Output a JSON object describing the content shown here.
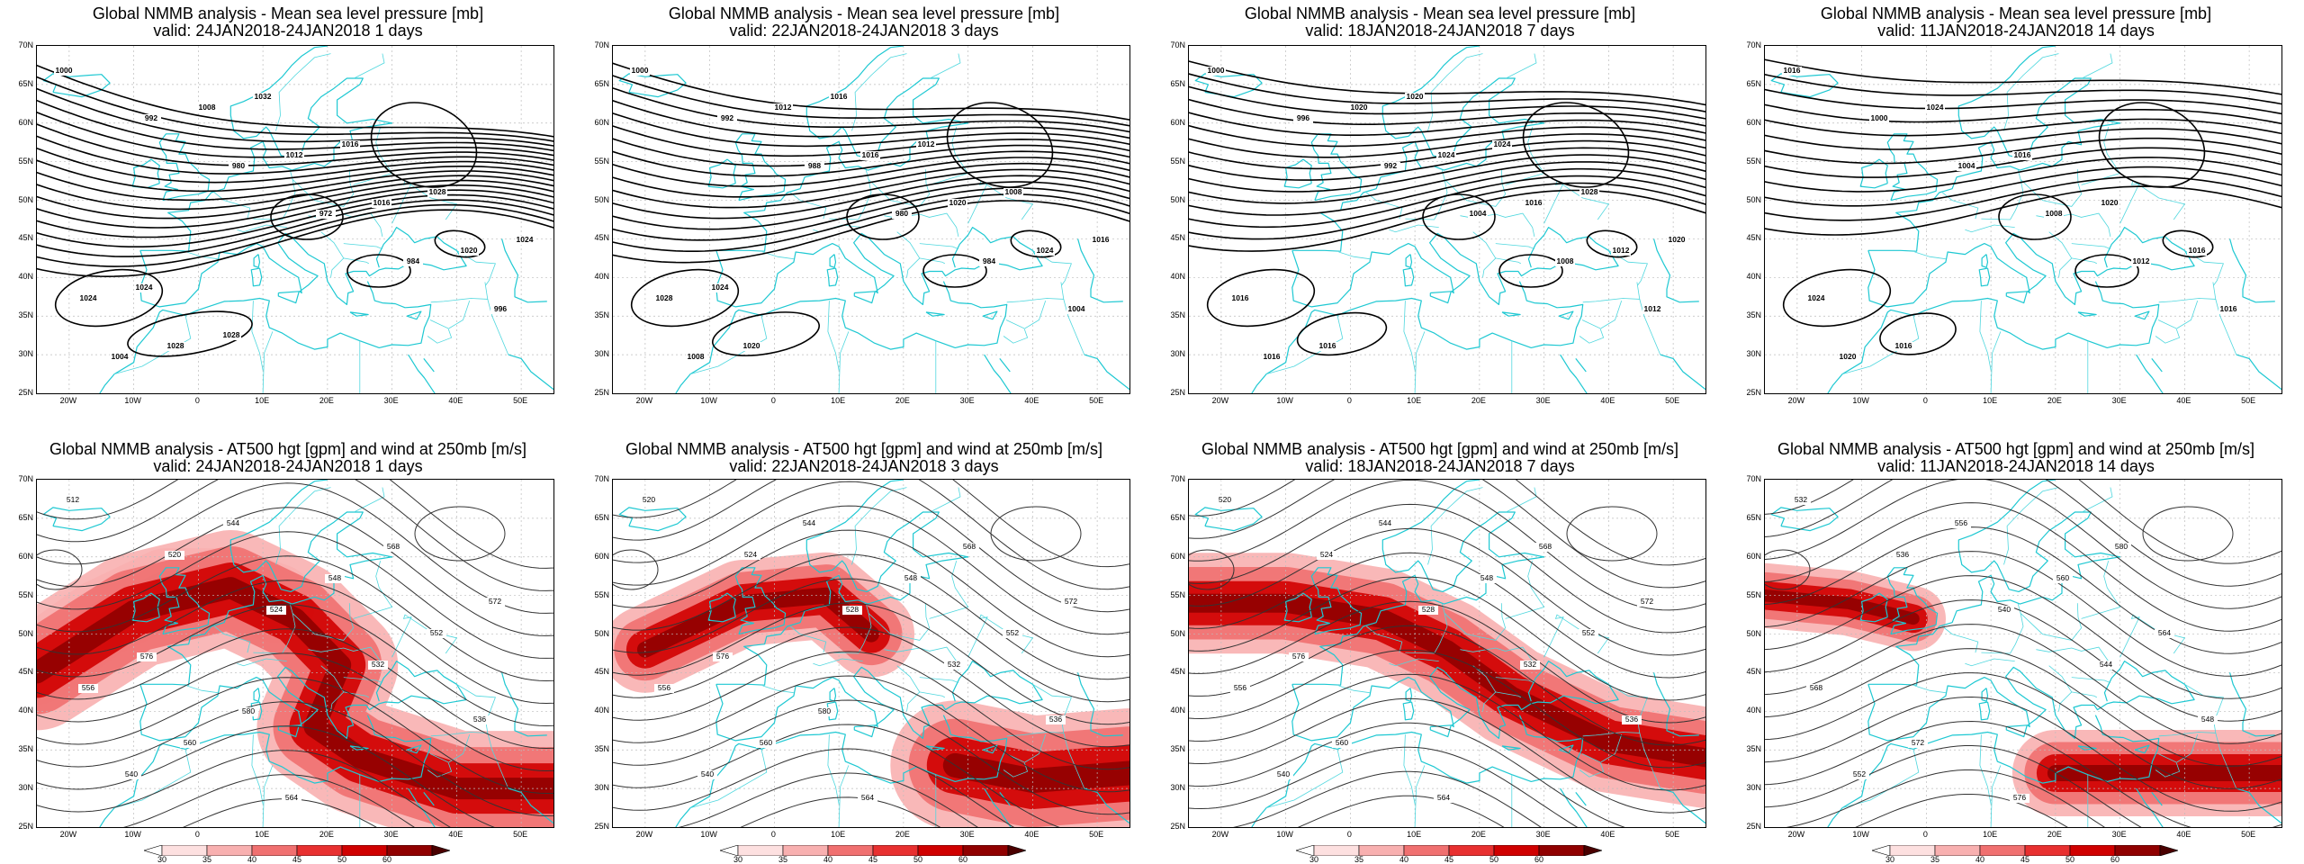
{
  "top_title_prefix": "Global NMMB analysis - Mean sea level pressure [mb]",
  "bottom_title_prefix": "Global NMMB analysis - AT500 hgt [gpm] and wind at 250mb [m/s]",
  "panels": [
    {
      "valid": "valid: 24JAN2018-24JAN2018   1 days"
    },
    {
      "valid": "valid: 22JAN2018-24JAN2018   3 days"
    },
    {
      "valid": "valid: 18JAN2018-24JAN2018   7 days"
    },
    {
      "valid": "valid: 11JAN2018-24JAN2018   14 days"
    }
  ],
  "lat_labels": [
    "70N",
    "65N",
    "60N",
    "55N",
    "50N",
    "45N",
    "40N",
    "35N",
    "30N",
    "25N"
  ],
  "lon_labels": [
    "20W",
    "10W",
    "0",
    "10E",
    "20E",
    "30E",
    "40E",
    "50E"
  ],
  "colorbar": {
    "ticks": [
      "30",
      "35",
      "40",
      "45",
      "50",
      "60"
    ],
    "colors": [
      "#ffffff",
      "#fde0e0",
      "#f8b0b0",
      "#f07070",
      "#e83030",
      "#d00000",
      "#900000",
      "#4a0000"
    ]
  },
  "isobar_labels_1": [
    "1000",
    "992",
    "980",
    "972",
    "984",
    "996",
    "1004",
    "1008",
    "1012",
    "1016",
    "1020",
    "1024",
    "1028",
    "1032",
    "1016",
    "1028",
    "1024",
    "1024",
    "1028"
  ],
  "isobar_labels_2": [
    "1000",
    "992",
    "988",
    "980",
    "984",
    "1004",
    "1008",
    "1012",
    "1016",
    "1020",
    "1024",
    "1028",
    "1020",
    "1016",
    "1012",
    "1008",
    "1016",
    "1024"
  ],
  "isobar_labels_3": [
    "1000",
    "996",
    "992",
    "1004",
    "1008",
    "1012",
    "1016",
    "1020",
    "1024",
    "1016",
    "1012",
    "1016",
    "1016",
    "1020",
    "1024",
    "1028",
    "1020"
  ],
  "isobar_labels_4": [
    "1016",
    "1000",
    "1004",
    "1008",
    "1012",
    "1016",
    "1020",
    "1024",
    "1016",
    "1020",
    "1016",
    "1024",
    "1016"
  ],
  "hgt_labels_1": [
    "512",
    "520",
    "524",
    "532",
    "536",
    "540",
    "544",
    "548",
    "552",
    "556",
    "560",
    "564",
    "568",
    "572",
    "576",
    "580"
  ],
  "hgt_labels_2": [
    "520",
    "524",
    "528",
    "532",
    "536",
    "540",
    "544",
    "548",
    "552",
    "556",
    "560",
    "564",
    "568",
    "572",
    "576",
    "580"
  ],
  "hgt_labels_3": [
    "520",
    "524",
    "528",
    "532",
    "536",
    "540",
    "544",
    "548",
    "552",
    "556",
    "560",
    "564",
    "568",
    "572",
    "576"
  ],
  "hgt_labels_4": [
    "532",
    "536",
    "540",
    "544",
    "548",
    "552",
    "556",
    "560",
    "564",
    "568",
    "572",
    "576",
    "580"
  ]
}
